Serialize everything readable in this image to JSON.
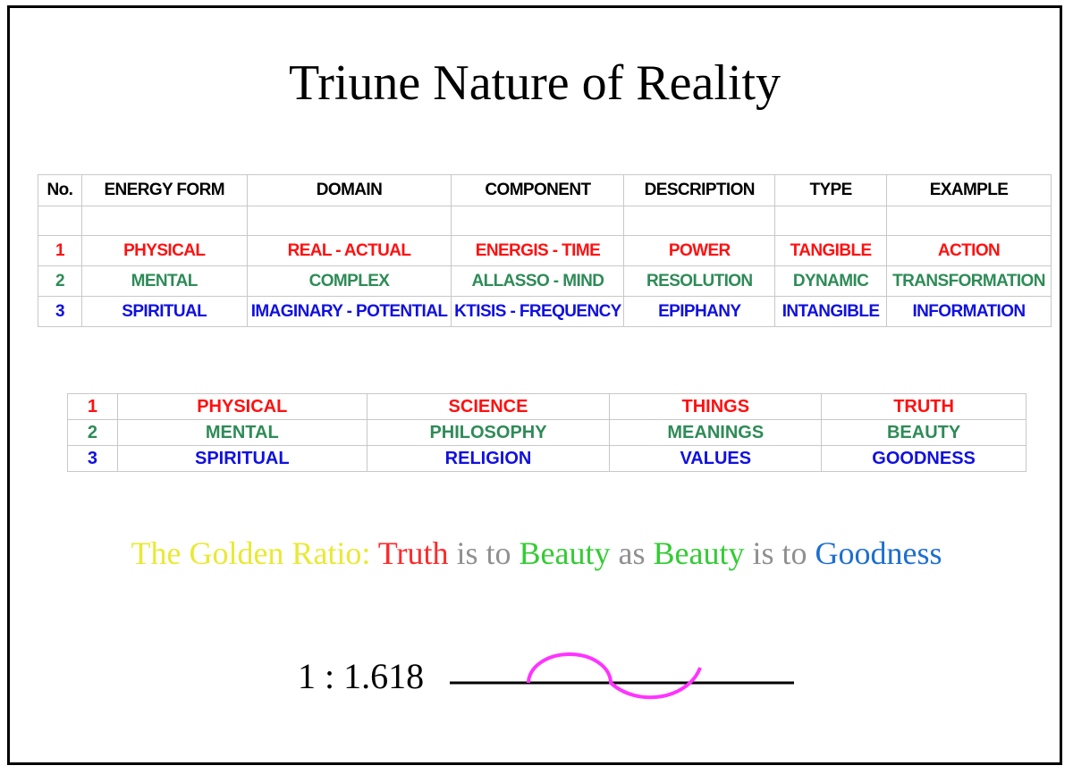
{
  "title": "Triune Nature of Reality",
  "table1": {
    "headers": [
      "No.",
      "ENERGY FORM",
      "DOMAIN",
      "COMPONENT",
      "DESCRIPTION",
      "TYPE",
      "EXAMPLE"
    ],
    "rows": [
      [
        "1",
        "PHYSICAL",
        "REAL - ACTUAL",
        "ENERGIS - TIME",
        "POWER",
        "TANGIBLE",
        "ACTION"
      ],
      [
        "2",
        "MENTAL",
        "COMPLEX",
        "ALLASSO - MIND",
        "RESOLUTION",
        "DYNAMIC",
        "TRANSFORMATION"
      ],
      [
        "3",
        "SPIRITUAL",
        "IMAGINARY - POTENTIAL",
        "KTISIS - FREQUENCY",
        "EPIPHANY",
        "INTANGIBLE",
        "INFORMATION"
      ]
    ]
  },
  "table2": {
    "rows": [
      [
        "1",
        "PHYSICAL",
        "SCIENCE",
        "THINGS",
        "TRUTH"
      ],
      [
        "2",
        "MENTAL",
        "PHILOSOPHY",
        "MEANINGS",
        "BEAUTY"
      ],
      [
        "3",
        "SPIRITUAL",
        "RELIGION",
        "VALUES",
        "GOODNESS"
      ]
    ]
  },
  "golden_ratio": {
    "prefix": "The Golden Ratio:",
    "truth": "Truth",
    "is_to_1": "is to",
    "beauty_1": "Beauty",
    "as": "as",
    "beauty_2": "Beauty",
    "is_to_2": "is to",
    "goodness": "Goodness"
  },
  "proportion": "1 : 1.618",
  "colors": {
    "physical": "#ff1010",
    "mental": "#2e8b57",
    "spiritual": "#1010e0",
    "golden": "#e9e934",
    "wave": "#ff33ff"
  }
}
